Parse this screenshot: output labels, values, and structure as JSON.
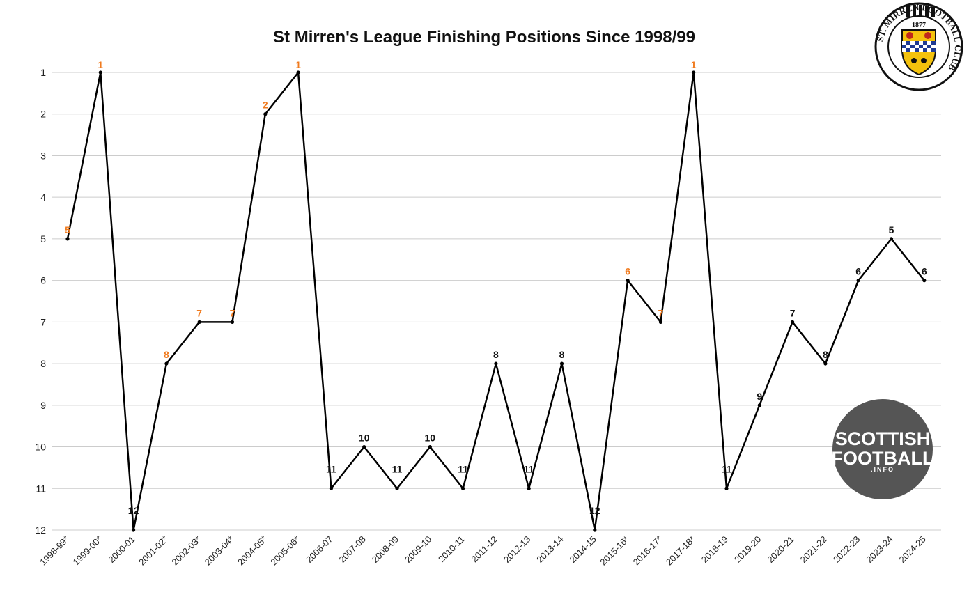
{
  "chart_data": {
    "type": "line",
    "title": "St Mirren's League Finishing Positions Since 1998/99",
    "xlabel": "",
    "ylabel": "",
    "y_inverted": true,
    "ylim": [
      1,
      12
    ],
    "yticks": [
      "1",
      "2",
      "3",
      "4",
      "5",
      "6",
      "7",
      "8",
      "9",
      "10",
      "11",
      "12"
    ],
    "grid": true,
    "categories": [
      "1998-99*",
      "1999-00*",
      "2000-01",
      "2001-02*",
      "2002-03*",
      "2003-04*",
      "2004-05*",
      "2005-06*",
      "2006-07",
      "2007-08",
      "2008-09",
      "2009-10",
      "2010-11",
      "2011-12",
      "2012-13",
      "2013-14",
      "2014-15",
      "2015-16*",
      "2016-17*",
      "2017-18*",
      "2018-19",
      "2019-20",
      "2020-21",
      "2021-22",
      "2022-23",
      "2023-24",
      "2024-25"
    ],
    "series": [
      {
        "values": [
          5,
          1,
          12,
          8,
          7,
          7,
          2,
          1,
          11,
          10,
          11,
          10,
          11,
          8,
          11,
          8,
          12,
          6,
          7,
          1,
          11,
          9,
          7,
          8,
          6,
          5,
          6
        ]
      }
    ],
    "label_colors": [
      "orange",
      "orange",
      "black",
      "orange",
      "orange",
      "orange",
      "orange",
      "orange",
      "black",
      "black",
      "black",
      "black",
      "black",
      "black",
      "black",
      "black",
      "black",
      "orange",
      "orange",
      "orange",
      "black",
      "black",
      "black",
      "black",
      "black",
      "black",
      "black"
    ],
    "colors": {
      "orange": "#f07b1f",
      "black": "#111111",
      "line": "#000000",
      "grid": "#cccccc"
    }
  },
  "logos": {
    "club_crest": {
      "icon": "club-crest",
      "ring_text": "ST. MIRREN FOOTBALL CLUB",
      "year": "1877"
    },
    "watermark": {
      "icon": "scottish-football-logo",
      "line1": "SCOTTISH",
      "line2": "FOOTBALL",
      "line3": ".INFO"
    }
  }
}
